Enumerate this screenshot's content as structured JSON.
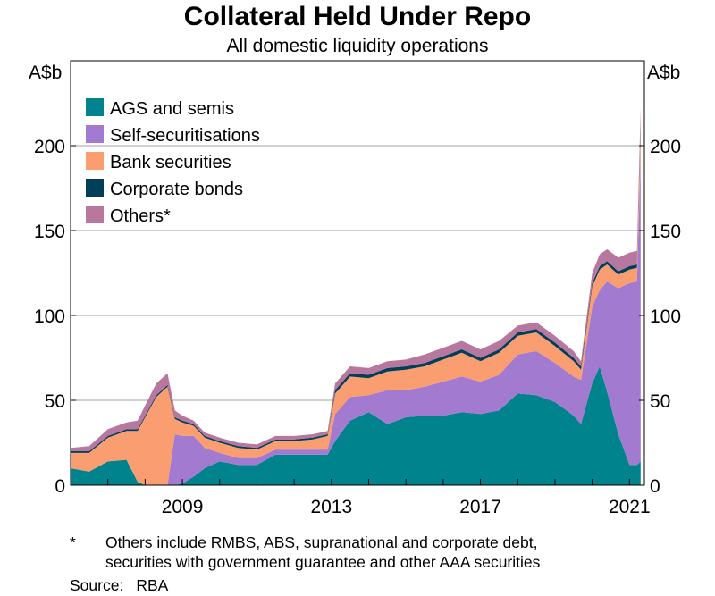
{
  "chart_data": {
    "type": "area",
    "stacked": true,
    "title": "Collateral Held Under Repo",
    "subtitle": "All domestic liquidity operations",
    "ylabel_left": "A$b",
    "ylabel_right": "A$b",
    "ylim": [
      0,
      250
    ],
    "yticks": [
      0,
      50,
      100,
      150,
      200
    ],
    "xlim": [
      2006.0,
      2021.4
    ],
    "xticks": [
      2009,
      2013,
      2017,
      2021
    ],
    "grid": true,
    "legend_position": "top-left",
    "x": [
      2006.0,
      2006.5,
      2007.0,
      2007.5,
      2007.8,
      2008.0,
      2008.3,
      2008.6,
      2008.8,
      2009.0,
      2009.3,
      2009.6,
      2010.0,
      2010.5,
      2011.0,
      2011.5,
      2012.0,
      2012.5,
      2012.9,
      2013.1,
      2013.5,
      2014.0,
      2014.5,
      2015.0,
      2015.5,
      2016.0,
      2016.5,
      2017.0,
      2017.5,
      2018.0,
      2018.5,
      2019.0,
      2019.5,
      2019.7,
      2020.0,
      2020.2,
      2020.4,
      2020.7,
      2021.0,
      2021.2,
      2021.3
    ],
    "series": [
      {
        "name": "AGS and semis",
        "color": "#00838c",
        "values": [
          10,
          8,
          14,
          15,
          2,
          0,
          0,
          0,
          0,
          1,
          5,
          10,
          14,
          12,
          12,
          18,
          18,
          18,
          18,
          26,
          38,
          43,
          36,
          40,
          41,
          41,
          43,
          42,
          44,
          54,
          53,
          49,
          41,
          36,
          60,
          70,
          55,
          30,
          12,
          12,
          14
        ]
      },
      {
        "name": "Self-securitisations",
        "color": "#a27bd0",
        "values": [
          0,
          0,
          0,
          0,
          0,
          0,
          0,
          0,
          30,
          28,
          24,
          12,
          5,
          4,
          4,
          3,
          3,
          3,
          3,
          16,
          14,
          10,
          20,
          16,
          17,
          20,
          21,
          19,
          21,
          23,
          26,
          23,
          23,
          26,
          45,
          45,
          65,
          86,
          107,
          108,
          178
        ]
      },
      {
        "name": "Bank securities",
        "color": "#fa9e72",
        "values": [
          9,
          11,
          14,
          17,
          30,
          40,
          52,
          58,
          9,
          8,
          6,
          6,
          6,
          6,
          5,
          5,
          5,
          6,
          8,
          12,
          12,
          10,
          11,
          12,
          12,
          13,
          14,
          12,
          13,
          11,
          11,
          10,
          9,
          6,
          12,
          12,
          10,
          8,
          8,
          8,
          12
        ]
      },
      {
        "name": "Corporate bonds",
        "color": "#003f57",
        "values": [
          1,
          1,
          1,
          1,
          1,
          1,
          1,
          1,
          1,
          1,
          1,
          1,
          1,
          1,
          1,
          1,
          1,
          1,
          1,
          2,
          2,
          2,
          2,
          2,
          2,
          2,
          2,
          2,
          2,
          2,
          2,
          2,
          2,
          2,
          2,
          2,
          2,
          2,
          2,
          2,
          2
        ]
      },
      {
        "name": "Others*",
        "color": "#b8779e",
        "values": [
          2,
          3,
          4,
          4,
          5,
          6,
          7,
          7,
          4,
          3,
          2,
          2,
          2,
          2,
          2,
          2,
          2,
          2,
          2,
          4,
          4,
          4,
          4,
          4,
          5,
          5,
          5,
          5,
          5,
          4,
          4,
          4,
          4,
          3,
          6,
          7,
          7,
          8,
          8,
          8,
          16
        ]
      }
    ]
  },
  "footnote": {
    "mark": "*",
    "line1": "Others include RMBS, ABS, supranational and corporate debt,",
    "line2": "securities with government guarantee and other AAA securities"
  },
  "source": {
    "label": "Source:",
    "value": "RBA"
  }
}
